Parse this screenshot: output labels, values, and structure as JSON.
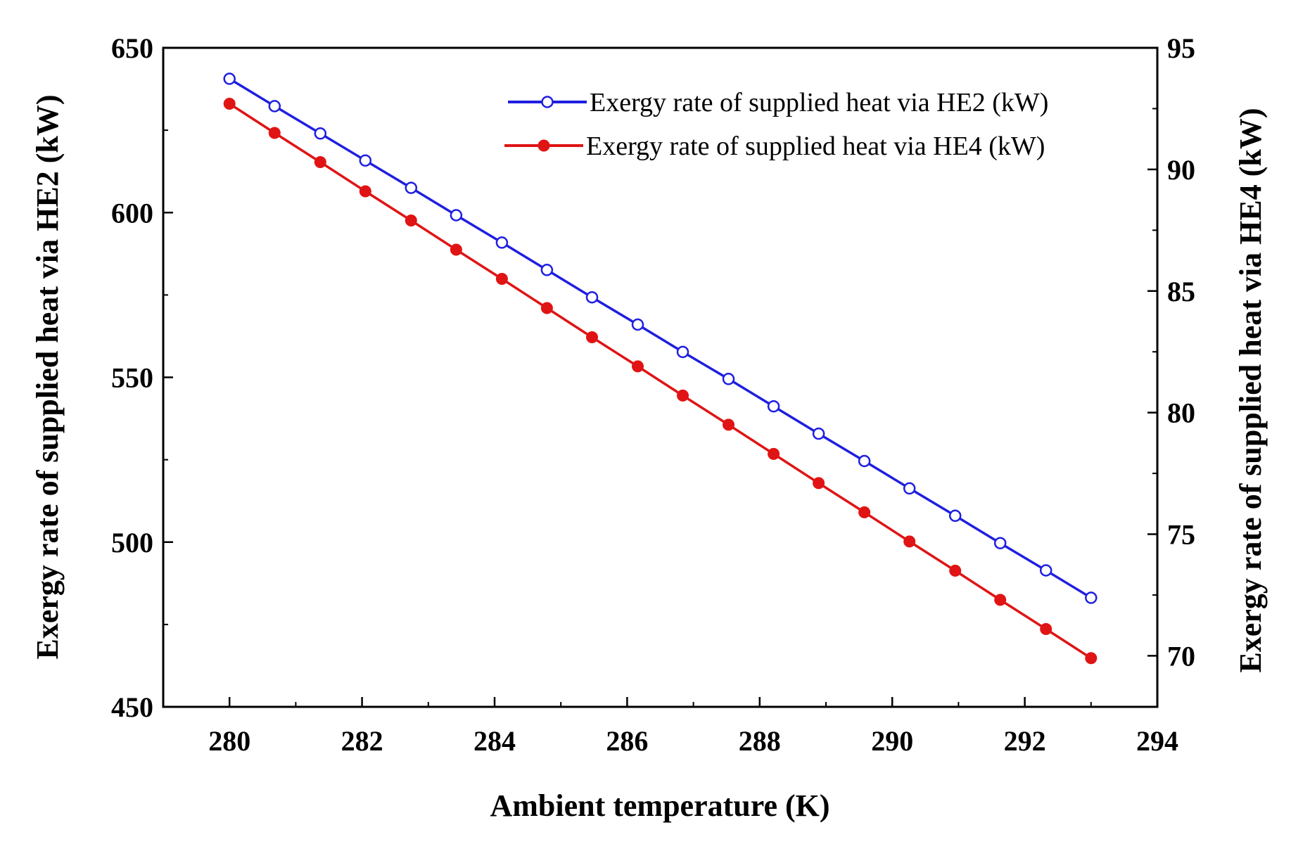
{
  "chart_data": {
    "type": "line",
    "title": "",
    "xlabel": "Ambient temperature (K)",
    "ylabel_left": "Exergy rate of supplied heat via HE2 (kW)",
    "ylabel_right": "Exergy rate of supplied heat via HE4 (kW)",
    "xlim": [
      279,
      294
    ],
    "xticks": [
      280,
      282,
      284,
      286,
      288,
      290,
      292,
      294
    ],
    "ylim_left": [
      450,
      650
    ],
    "yticks_left": [
      450,
      500,
      550,
      600,
      650
    ],
    "ylim_right": [
      67.9,
      95
    ],
    "yticks_right": [
      70,
      75,
      80,
      85,
      90,
      95
    ],
    "grid": false,
    "legend_position": "top-right",
    "x": [
      280,
      280.68,
      281.37,
      282.05,
      282.74,
      283.42,
      284.11,
      284.79,
      285.47,
      286.16,
      286.84,
      287.53,
      288.21,
      288.89,
      289.58,
      290.26,
      290.95,
      291.63,
      292.32,
      293
    ],
    "series": [
      {
        "name": "Exergy rate of supplied heat via HE2 (kW)",
        "axis": "left",
        "color": "#1f1fe0",
        "marker": "open-circle",
        "values": [
          640.6,
          632.3,
          624.0,
          615.8,
          607.5,
          599.2,
          590.9,
          582.6,
          574.3,
          566.0,
          557.7,
          549.5,
          541.2,
          532.9,
          524.6,
          516.3,
          508.0,
          499.7,
          491.4,
          483.1
        ]
      },
      {
        "name": "Exergy rate of supplied heat via HE4 (kW)",
        "axis": "right",
        "color": "#e01414",
        "marker": "filled-circle",
        "values": [
          92.7,
          91.5,
          90.3,
          89.1,
          87.9,
          86.7,
          85.5,
          84.3,
          83.1,
          81.9,
          80.7,
          79.5,
          78.3,
          77.1,
          75.9,
          74.7,
          73.5,
          72.3,
          71.1,
          69.9
        ]
      }
    ]
  }
}
